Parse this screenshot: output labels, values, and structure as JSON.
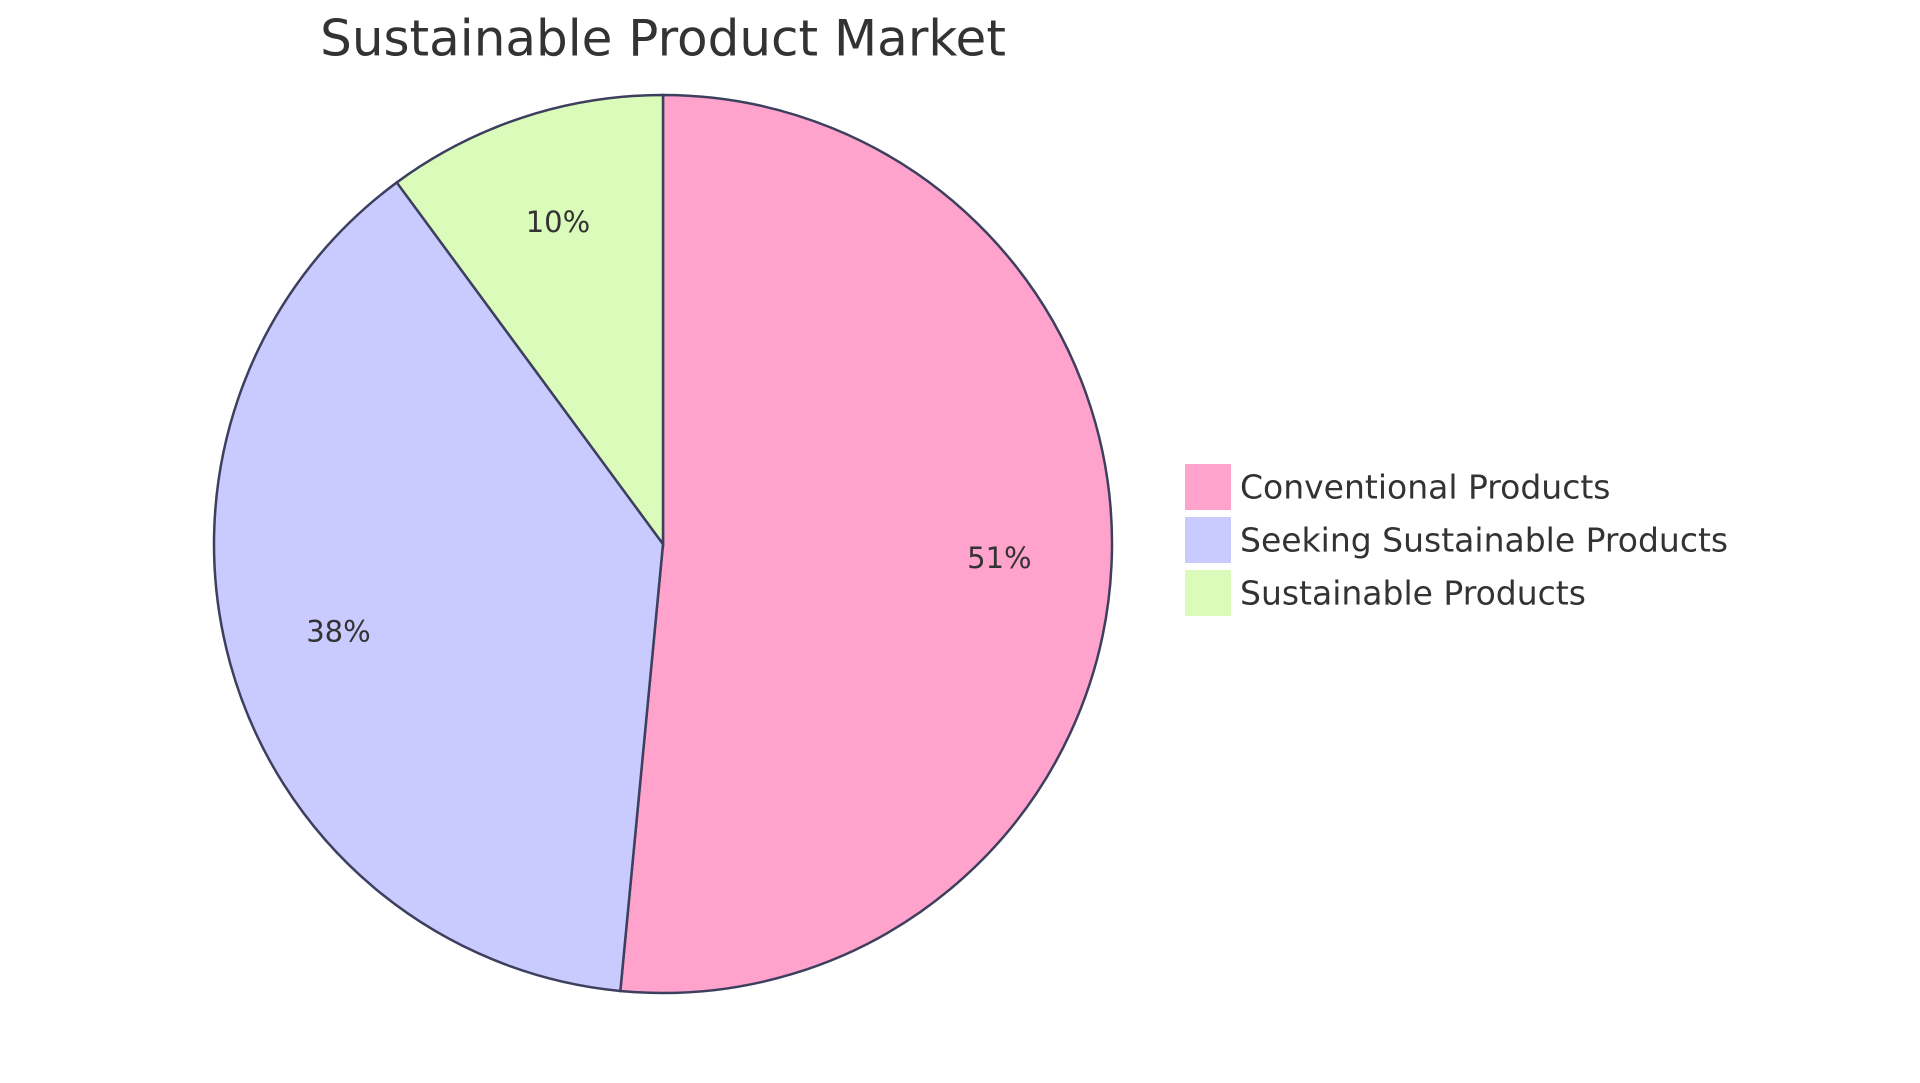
{
  "chart_data": {
    "type": "pie",
    "title": "Sustainable Product Market",
    "categories": [
      "Conventional Products",
      "Seeking Sustainable Products",
      "Sustainable Products"
    ],
    "values": [
      51,
      38,
      10
    ],
    "value_labels": [
      "51%",
      "38%",
      "10%"
    ],
    "colors": [
      "#ffa3cd",
      "#c9cafd",
      "#dbfbbb"
    ],
    "legend": "right"
  }
}
